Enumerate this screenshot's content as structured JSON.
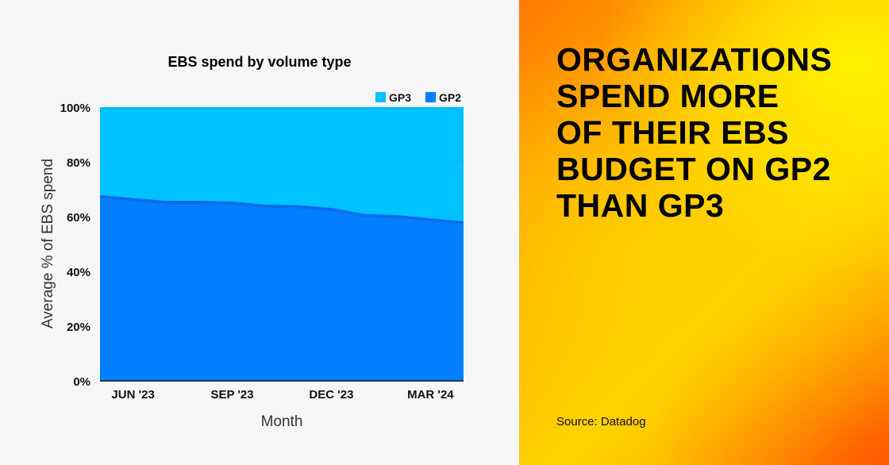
{
  "chart_data": {
    "type": "area",
    "stacked": true,
    "normalized": true,
    "title": "EBS spend by volume type",
    "xlabel": "Month",
    "ylabel": "Average % of EBS spend",
    "x": [
      "2023-05",
      "2023-06",
      "2023-07",
      "2023-08",
      "2023-09",
      "2023-10",
      "2023-11",
      "2023-12",
      "2024-01",
      "2024-02",
      "2024-03",
      "2024-04"
    ],
    "x_ticks": [
      {
        "x": "2023-06",
        "label": "JUN '23"
      },
      {
        "x": "2023-09",
        "label": "SEP '23"
      },
      {
        "x": "2023-12",
        "label": "DEC '23"
      },
      {
        "x": "2024-03",
        "label": "MAR '24"
      }
    ],
    "y_ticks": [
      "0%",
      "20%",
      "40%",
      "60%",
      "80%",
      "100%"
    ],
    "ylim": [
      0,
      100
    ],
    "grid": true,
    "legend_position": "top-right",
    "series": [
      {
        "name": "GP2",
        "color": "#0080ff",
        "values": [
          67.3,
          66.2,
          65.2,
          65.2,
          64.9,
          63.8,
          63.6,
          62.6,
          60.4,
          60.0,
          58.8,
          57.7
        ]
      },
      {
        "name": "GP3",
        "color": "#00c2ff",
        "values": [
          32.7,
          33.8,
          34.8,
          34.8,
          35.1,
          36.2,
          36.4,
          37.4,
          39.6,
          40.0,
          41.2,
          42.3
        ]
      }
    ]
  },
  "panel": {
    "headline": "ORGANIZATIONS\nSPEND MORE\nOF THEIR EBS\nBUDGET ON GP2\nTHAN GP3",
    "source": "Source: Datadog"
  }
}
